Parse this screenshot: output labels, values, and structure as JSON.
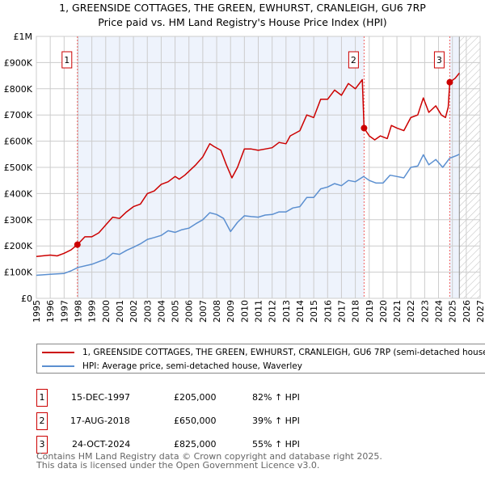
{
  "chart_data": {
    "type": "line",
    "title": "1, GREENSIDE COTTAGES, THE GREEN, EWHURST, CRANLEIGH, GU6 7RP",
    "subtitle": "Price paid vs. HM Land Registry's House Price Index (HPI)",
    "xlabel": "",
    "ylabel": "",
    "xlim": [
      1995,
      2027
    ],
    "ylim": [
      0,
      1000000
    ],
    "x_ticks": [
      "1995",
      "1996",
      "1997",
      "1998",
      "1999",
      "2000",
      "2001",
      "2002",
      "2003",
      "2004",
      "2005",
      "2006",
      "2007",
      "2008",
      "2009",
      "2010",
      "2011",
      "2012",
      "2013",
      "2014",
      "2015",
      "2016",
      "2017",
      "2018",
      "2019",
      "2020",
      "2021",
      "2022",
      "2023",
      "2024",
      "2025",
      "2026",
      "2027"
    ],
    "y_ticks": [
      {
        "v": 0,
        "label": "£0"
      },
      {
        "v": 100000,
        "label": "£100K"
      },
      {
        "v": 200000,
        "label": "£200K"
      },
      {
        "v": 300000,
        "label": "£300K"
      },
      {
        "v": 400000,
        "label": "£400K"
      },
      {
        "v": 500000,
        "label": "£500K"
      },
      {
        "v": 600000,
        "label": "£600K"
      },
      {
        "v": 700000,
        "label": "£700K"
      },
      {
        "v": 800000,
        "label": "£800K"
      },
      {
        "v": 900000,
        "label": "£900K"
      },
      {
        "v": 1000000,
        "label": "£1M"
      }
    ],
    "grid": true,
    "shaded_ranges": [
      [
        1997.96,
        2018.63
      ],
      [
        2024.81,
        2025.5
      ]
    ],
    "hatched_from": 2025.5,
    "series": [
      {
        "name": "1, GREENSIDE COTTAGES, THE GREEN, EWHURST, CRANLEIGH, GU6 7RP (semi-detached house)",
        "color": "#cc0000",
        "x": [
          1995,
          1996,
          1996.5,
          1997,
          1997.5,
          1997.96,
          1998.5,
          1999,
          1999.5,
          2000,
          2000.5,
          2001,
          2001.5,
          2002,
          2002.5,
          2003,
          2003.5,
          2004,
          2004.5,
          2005,
          2005.3,
          2005.7,
          2006,
          2006.5,
          2007,
          2007.5,
          2007.8,
          2008.3,
          2008.7,
          2009.1,
          2009.5,
          2010,
          2010.5,
          2011,
          2011.5,
          2012,
          2012.5,
          2013,
          2013.3,
          2014,
          2014.5,
          2015,
          2015.5,
          2016,
          2016.5,
          2017,
          2017.5,
          2018,
          2018.5,
          2018.63,
          2019,
          2019.4,
          2019.8,
          2020.3,
          2020.6,
          2021,
          2021.5,
          2022,
          2022.5,
          2022.9,
          2023.3,
          2023.8,
          2024.2,
          2024.5,
          2024.7,
          2024.81,
          2025.2,
          2025.5
        ],
        "y": [
          160000,
          165000,
          162000,
          172000,
          185000,
          205000,
          235000,
          235000,
          250000,
          280000,
          310000,
          305000,
          330000,
          350000,
          360000,
          400000,
          410000,
          435000,
          445000,
          465000,
          455000,
          470000,
          485000,
          510000,
          540000,
          590000,
          580000,
          565000,
          510000,
          460000,
          500000,
          570000,
          570000,
          565000,
          570000,
          575000,
          595000,
          590000,
          620000,
          640000,
          700000,
          690000,
          760000,
          760000,
          795000,
          775000,
          820000,
          800000,
          835000,
          650000,
          620000,
          605000,
          620000,
          610000,
          660000,
          650000,
          640000,
          690000,
          700000,
          765000,
          710000,
          735000,
          700000,
          690000,
          730000,
          825000,
          840000,
          860000
        ]
      },
      {
        "name": "HPI: Average price, semi-detached house, Waverley",
        "color": "#5b8fd0",
        "x": [
          1995,
          1996,
          1997,
          1997.5,
          1998,
          1999,
          2000,
          2000.5,
          2001,
          2001.5,
          2002,
          2002.5,
          2003,
          2003.5,
          2004,
          2004.5,
          2005,
          2005.5,
          2006,
          2006.5,
          2007,
          2007.5,
          2008,
          2008.5,
          2009,
          2009.5,
          2010,
          2010.5,
          2011,
          2011.5,
          2012,
          2012.5,
          2013,
          2013.5,
          2014,
          2014.5,
          2015,
          2015.5,
          2016,
          2016.5,
          2017,
          2017.5,
          2018,
          2018.6,
          2019,
          2019.5,
          2020,
          2020.5,
          2021,
          2021.5,
          2022,
          2022.5,
          2022.9,
          2023.3,
          2023.8,
          2024.3,
          2024.8,
          2025.3,
          2025.5
        ],
        "y": [
          88000,
          92000,
          95000,
          105000,
          118000,
          130000,
          150000,
          172000,
          168000,
          183000,
          195000,
          208000,
          225000,
          232000,
          240000,
          258000,
          252000,
          262000,
          268000,
          285000,
          300000,
          327000,
          320000,
          305000,
          255000,
          290000,
          315000,
          312000,
          310000,
          318000,
          320000,
          330000,
          330000,
          345000,
          350000,
          385000,
          385000,
          418000,
          425000,
          438000,
          430000,
          450000,
          445000,
          465000,
          450000,
          440000,
          440000,
          470000,
          465000,
          460000,
          500000,
          505000,
          548000,
          510000,
          530000,
          500000,
          535000,
          545000,
          550000
        ]
      }
    ],
    "sales": [
      {
        "id": "1",
        "x": 1997.96,
        "y": 205000,
        "date": "15-DEC-1997",
        "price": "£205,000",
        "hpi": "82% ↑ HPI"
      },
      {
        "id": "2",
        "x": 2018.63,
        "y": 650000,
        "date": "17-AUG-2018",
        "price": "£650,000",
        "hpi": "39% ↑ HPI"
      },
      {
        "id": "3",
        "x": 2024.81,
        "y": 825000,
        "date": "24-OCT-2024",
        "price": "£825,000",
        "hpi": "55% ↑ HPI"
      }
    ]
  },
  "footer": {
    "line1": "Contains HM Land Registry data © Crown copyright and database right 2025.",
    "line2": "This data is licensed under the Open Government Licence v3.0."
  }
}
